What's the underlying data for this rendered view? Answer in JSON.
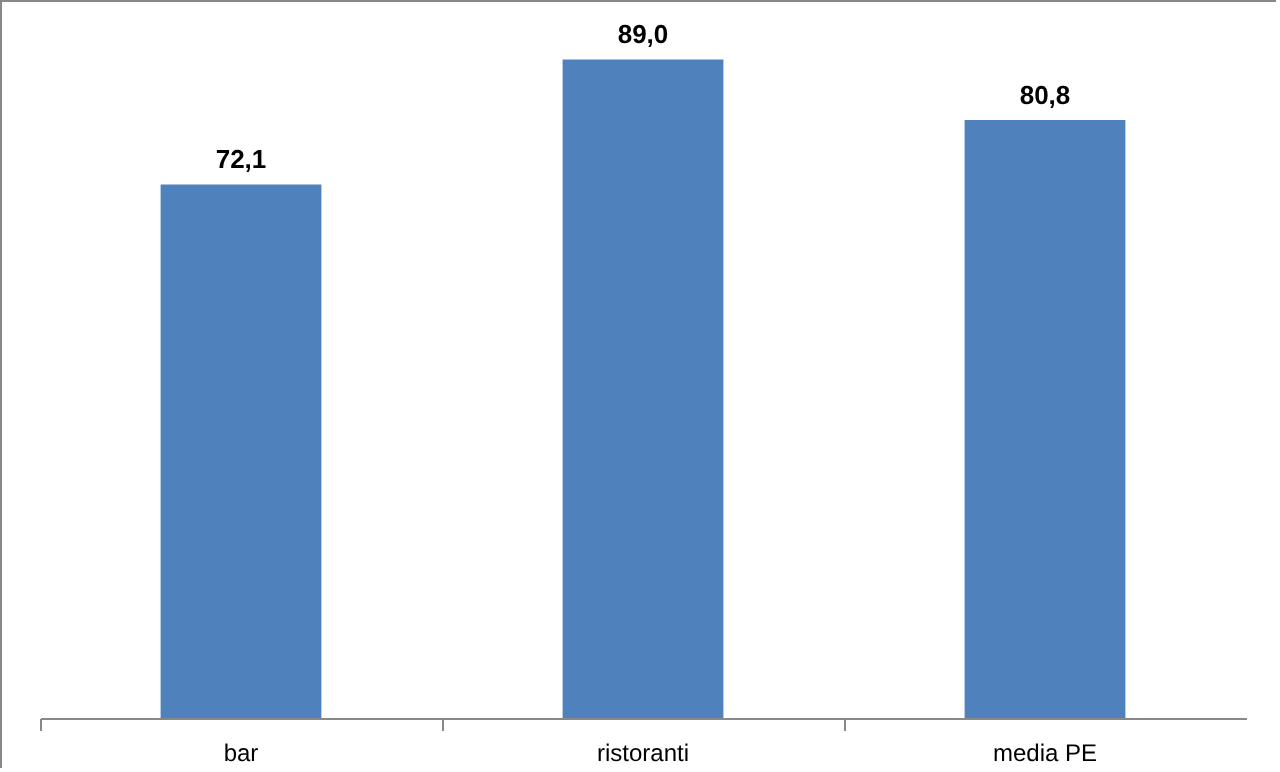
{
  "chart_data": {
    "type": "bar",
    "categories": [
      "bar",
      "ristoranti",
      "media PE"
    ],
    "values": [
      72.1,
      89.0,
      80.8
    ],
    "value_labels": [
      "72,1",
      "89,0",
      "80,8"
    ],
    "color": "#4f81bd",
    "grid": false
  }
}
